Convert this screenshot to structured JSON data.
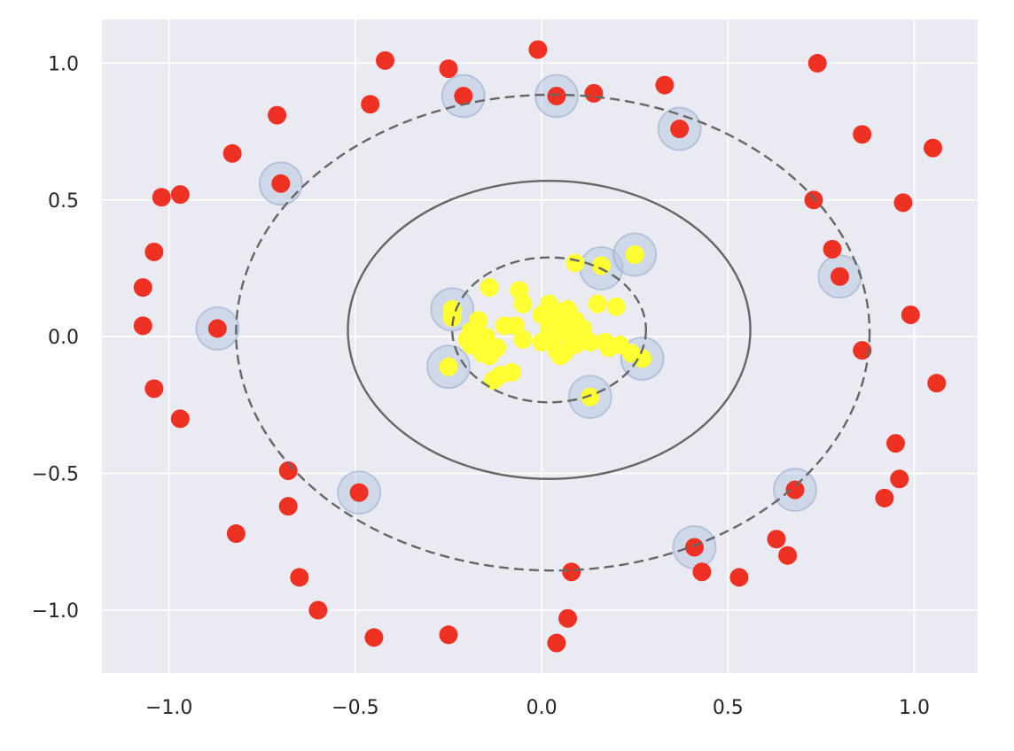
{
  "chart_data": {
    "type": "scatter",
    "title": "",
    "xlabel": "",
    "ylabel": "",
    "xlim": [
      -1.18,
      1.17
    ],
    "ylim": [
      -1.23,
      1.16
    ],
    "grid": true,
    "style": {
      "background": "#eaeaf2",
      "grid_color": "#ffffff",
      "outer_class_color": "#ef3124",
      "inner_class_color": "#ffff33",
      "support_vector_halo": "#b0c4de",
      "contour_color": "#666666"
    },
    "xticks": [
      {
        "value": -1.0,
        "label": "−1.0"
      },
      {
        "value": -0.5,
        "label": "−0.5"
      },
      {
        "value": 0.0,
        "label": "0.0"
      },
      {
        "value": 0.5,
        "label": "0.5"
      },
      {
        "value": 1.0,
        "label": "1.0"
      }
    ],
    "yticks": [
      {
        "value": 1.0,
        "label": "1.0"
      },
      {
        "value": 0.5,
        "label": "0.5"
      },
      {
        "value": 0.0,
        "label": "0.0"
      },
      {
        "value": -0.5,
        "label": "−0.5"
      },
      {
        "value": -1.0,
        "label": "−1.0"
      }
    ],
    "contours": [
      {
        "level": -1,
        "style": "dashed",
        "center": [
          0.03,
          0.015
        ],
        "radii": [
          0.85,
          0.87
        ]
      },
      {
        "level": 0,
        "style": "solid",
        "center": [
          0.02,
          0.025
        ],
        "radii": [
          0.54,
          0.545
        ]
      },
      {
        "level": 1,
        "style": "dashed",
        "center": [
          0.02,
          0.025
        ],
        "radii": [
          0.26,
          0.265
        ]
      }
    ],
    "series": [
      {
        "class": "outer",
        "points": [
          [
            -0.01,
            1.05
          ],
          [
            -0.42,
            1.01
          ],
          [
            -0.25,
            0.98
          ],
          [
            0.74,
            1.0
          ],
          [
            0.33,
            0.92
          ],
          [
            0.14,
            0.89
          ],
          [
            -0.21,
            0.88
          ],
          [
            0.04,
            0.88
          ],
          [
            -0.46,
            0.85
          ],
          [
            -0.71,
            0.81
          ],
          [
            0.37,
            0.76
          ],
          [
            0.86,
            0.74
          ],
          [
            -0.83,
            0.67
          ],
          [
            1.05,
            0.69
          ],
          [
            -0.7,
            0.56
          ],
          [
            -1.02,
            0.51
          ],
          [
            -0.97,
            0.52
          ],
          [
            0.73,
            0.5
          ],
          [
            0.97,
            0.49
          ],
          [
            -1.04,
            0.31
          ],
          [
            0.78,
            0.32
          ],
          [
            0.8,
            0.22
          ],
          [
            -1.07,
            0.18
          ],
          [
            0.99,
            0.08
          ],
          [
            -1.07,
            0.04
          ],
          [
            -0.87,
            0.03
          ],
          [
            0.86,
            -0.05
          ],
          [
            -1.04,
            -0.19
          ],
          [
            1.06,
            -0.17
          ],
          [
            -0.97,
            -0.3
          ],
          [
            0.95,
            -0.39
          ],
          [
            -0.68,
            -0.49
          ],
          [
            -0.68,
            -0.62
          ],
          [
            0.96,
            -0.52
          ],
          [
            0.92,
            -0.59
          ],
          [
            -0.49,
            -0.57
          ],
          [
            0.68,
            -0.56
          ],
          [
            -0.82,
            -0.72
          ],
          [
            0.63,
            -0.74
          ],
          [
            0.66,
            -0.8
          ],
          [
            0.41,
            -0.77
          ],
          [
            0.43,
            -0.86
          ],
          [
            0.53,
            -0.88
          ],
          [
            0.08,
            -0.86
          ],
          [
            -0.65,
            -0.88
          ],
          [
            -0.6,
            -1.0
          ],
          [
            -0.45,
            -1.1
          ],
          [
            -0.25,
            -1.09
          ],
          [
            0.07,
            -1.03
          ],
          [
            0.04,
            -1.12
          ]
        ]
      },
      {
        "class": "inner",
        "points": [
          [
            0.09,
            0.27
          ],
          [
            -0.14,
            0.18
          ],
          [
            -0.06,
            0.17
          ],
          [
            -0.05,
            0.12
          ],
          [
            0.02,
            0.12
          ],
          [
            0.15,
            0.12
          ],
          [
            0.2,
            0.11
          ],
          [
            0.05,
            0.09
          ],
          [
            0.07,
            0.1
          ],
          [
            -0.24,
            0.1
          ],
          [
            -0.17,
            0.06
          ],
          [
            0.0,
            0.08
          ],
          [
            0.04,
            0.05
          ],
          [
            0.09,
            0.06
          ],
          [
            -0.19,
            0.02
          ],
          [
            -0.1,
            0.04
          ],
          [
            -0.07,
            0.04
          ],
          [
            0.02,
            0.03
          ],
          [
            0.06,
            0.02
          ],
          [
            0.11,
            0.03
          ],
          [
            -0.2,
            -0.01
          ],
          [
            -0.15,
            0.0
          ],
          [
            -0.05,
            -0.01
          ],
          [
            0.03,
            -0.01
          ],
          [
            0.08,
            -0.01
          ],
          [
            0.13,
            -0.02
          ],
          [
            0.17,
            -0.02
          ],
          [
            0.21,
            -0.03
          ],
          [
            -0.19,
            -0.03
          ],
          [
            -0.12,
            -0.04
          ],
          [
            0.0,
            -0.02
          ],
          [
            0.09,
            -0.03
          ],
          [
            -0.16,
            -0.06
          ],
          [
            -0.14,
            -0.07
          ],
          [
            0.04,
            -0.05
          ],
          [
            0.06,
            -0.06
          ],
          [
            0.18,
            -0.04
          ],
          [
            0.24,
            -0.06
          ],
          [
            -0.25,
            -0.11
          ],
          [
            -0.11,
            -0.14
          ],
          [
            -0.08,
            -0.13
          ],
          [
            -0.13,
            -0.16
          ],
          [
            0.27,
            -0.08
          ],
          [
            0.13,
            -0.22
          ],
          [
            0.16,
            0.26
          ],
          [
            0.25,
            0.3
          ],
          [
            -0.24,
            0.07
          ],
          [
            0.05,
            -0.07
          ]
        ]
      }
    ],
    "support_vectors": [
      [
        -0.21,
        0.88
      ],
      [
        0.04,
        0.88
      ],
      [
        0.37,
        0.76
      ],
      [
        -0.7,
        0.56
      ],
      [
        0.8,
        0.22
      ],
      [
        -0.87,
        0.03
      ],
      [
        -0.49,
        -0.57
      ],
      [
        0.68,
        -0.56
      ],
      [
        0.41,
        -0.77
      ],
      [
        -0.24,
        0.1
      ],
      [
        -0.25,
        -0.11
      ],
      [
        0.16,
        0.25
      ],
      [
        0.25,
        0.3
      ],
      [
        0.27,
        -0.08
      ],
      [
        0.13,
        -0.22
      ]
    ]
  }
}
